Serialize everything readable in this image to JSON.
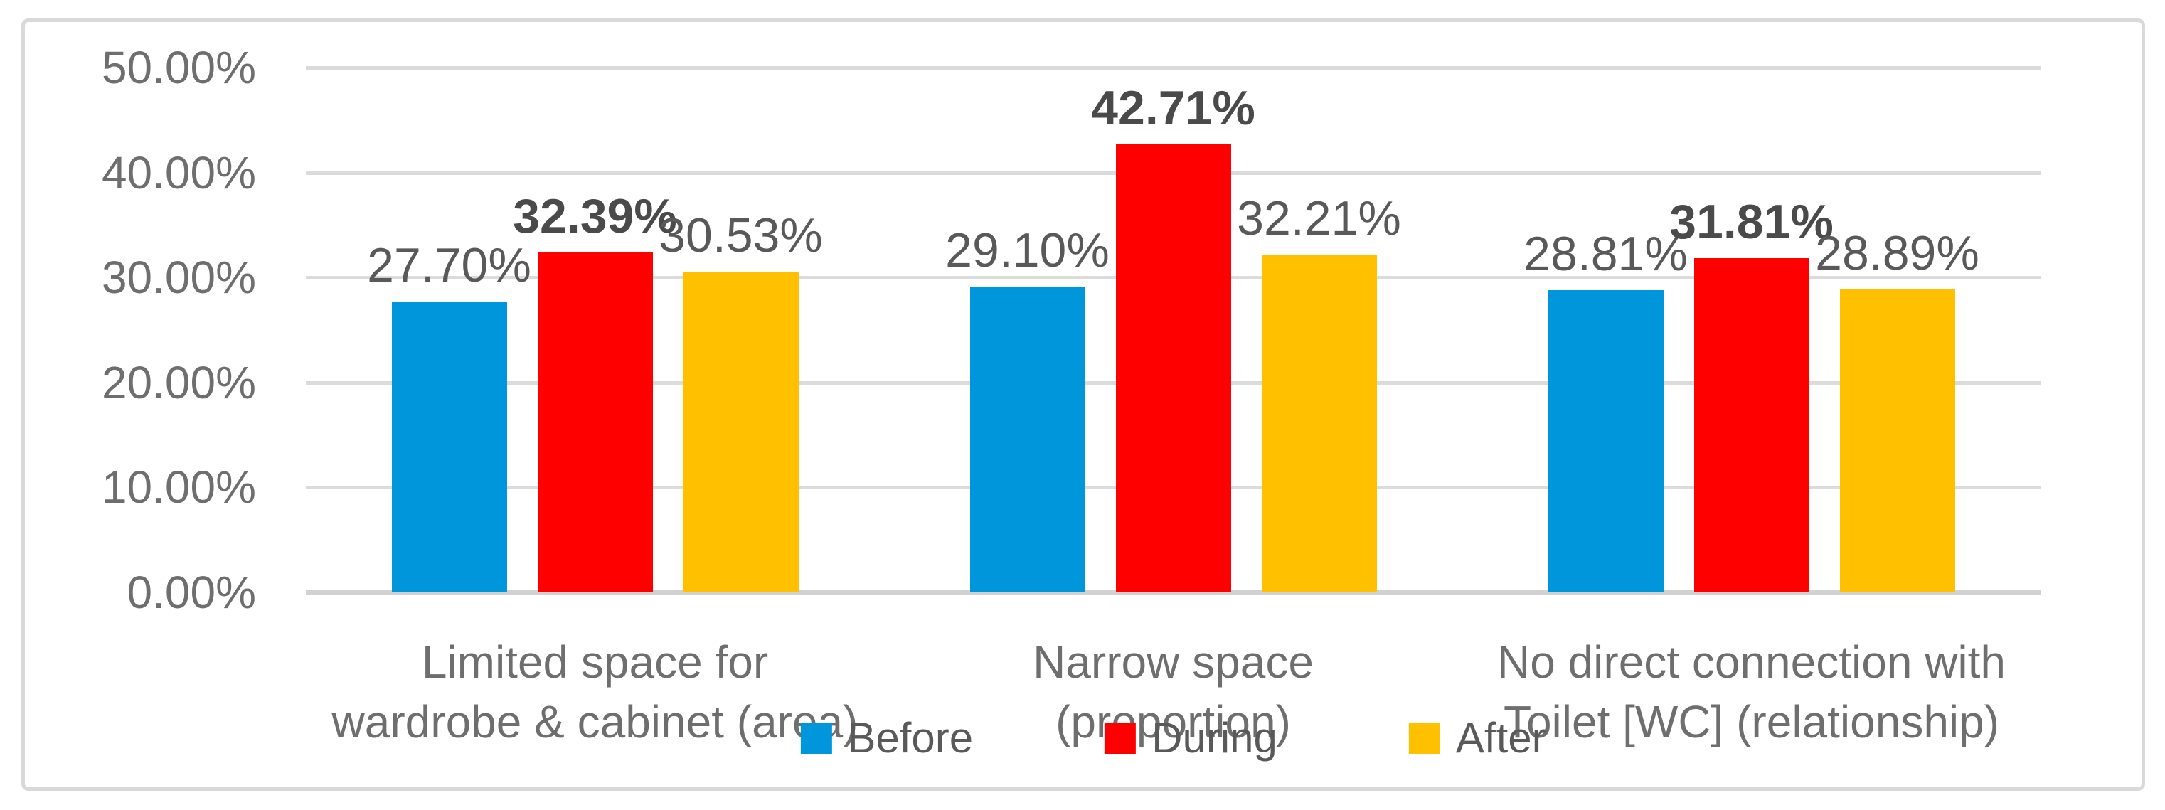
{
  "chart_data": {
    "type": "bar",
    "title": "",
    "xlabel": "",
    "ylabel": "",
    "categories": [
      [
        "Limited space for",
        "wardrobe & cabinet (area)"
      ],
      [
        "Narrow space",
        "(proportion)"
      ],
      [
        "No direct connection with",
        "Toilet [WC] (relationship)"
      ]
    ],
    "series": [
      {
        "name": "Before",
        "color": "#0096DC",
        "values": [
          27.7,
          29.1,
          28.81
        ],
        "labels": [
          "27.70%",
          "29.10%",
          "28.81%"
        ],
        "bold_labels": false
      },
      {
        "name": "During",
        "color": "#FF0000",
        "values": [
          32.39,
          42.71,
          31.81
        ],
        "labels": [
          "32.39%",
          "42.71%",
          "31.81%"
        ],
        "bold_labels": true
      },
      {
        "name": "After",
        "color": "#FFC000",
        "values": [
          30.53,
          32.21,
          28.89
        ],
        "labels": [
          "30.53%",
          "32.21%",
          "28.89%"
        ],
        "bold_labels": false
      }
    ],
    "y_axis": {
      "ticks": [
        "0.00%",
        "10.00%",
        "20.00%",
        "30.00%",
        "40.00%",
        "50.00%"
      ],
      "tick_values": [
        0,
        10,
        20,
        30,
        40,
        50
      ],
      "ylim": [
        0,
        50
      ],
      "grid": true
    },
    "legend": {
      "position": "bottom-center-overlapping-category-labels",
      "items": [
        "Before",
        "During",
        "After"
      ]
    },
    "colors": {
      "background": "#FFFFFF",
      "frame_border": "#D9D9D9",
      "gridline": "#DBDBDB",
      "axis_line": "#D2D2D2",
      "tick_text": "#6E6E6E",
      "category_text": "#6E6E6E",
      "data_label_text": "#595959",
      "data_label_bold_text": "#4A4A4A",
      "legend_text": "#595959"
    }
  }
}
